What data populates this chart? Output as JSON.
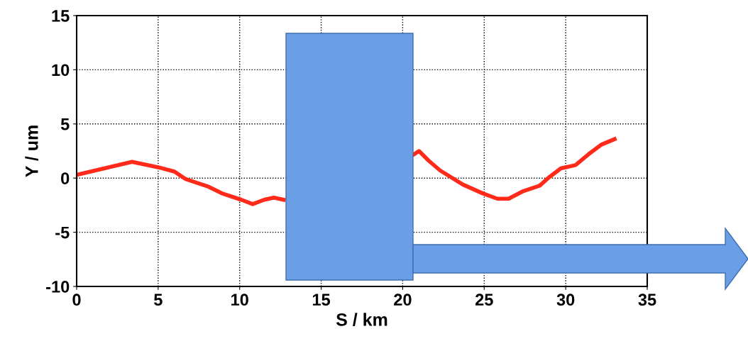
{
  "chart_data": {
    "type": "line",
    "xlabel": "S / km",
    "ylabel": "Y / um",
    "x": [
      0,
      3.4,
      5.0,
      6.0,
      6.7,
      8.1,
      8.9,
      10.1,
      10.8,
      11.5,
      12.1,
      12.7,
      16,
      20.7,
      21.0,
      21.6,
      22.3,
      23.7,
      24.9,
      25.8,
      26.5,
      27.4,
      28.4,
      29.0,
      29.7,
      30.6,
      31.4,
      32.2,
      33.0
    ],
    "series": [
      {
        "color": "#ff2a1a",
        "values": [
          0.3,
          1.5,
          1.0,
          0.6,
          -0.1,
          -0.8,
          -1.4,
          -2.0,
          -2.4,
          -2.0,
          -1.8,
          -2.0,
          null,
          2.2,
          2.5,
          1.6,
          0.7,
          -0.6,
          -1.4,
          -1.9,
          -1.9,
          -1.2,
          -0.7,
          0.1,
          0.9,
          1.2,
          2.2,
          3.1,
          3.6
        ]
      }
    ],
    "xlim": [
      0,
      35
    ],
    "xticks": [
      0,
      5,
      10,
      15,
      20,
      25,
      30,
      35
    ],
    "ylim": [
      -10,
      15
    ],
    "yticks": [
      -10,
      -5,
      0,
      5,
      10,
      15
    ],
    "grid": true,
    "line_style": "solid",
    "marker": "none"
  }
}
